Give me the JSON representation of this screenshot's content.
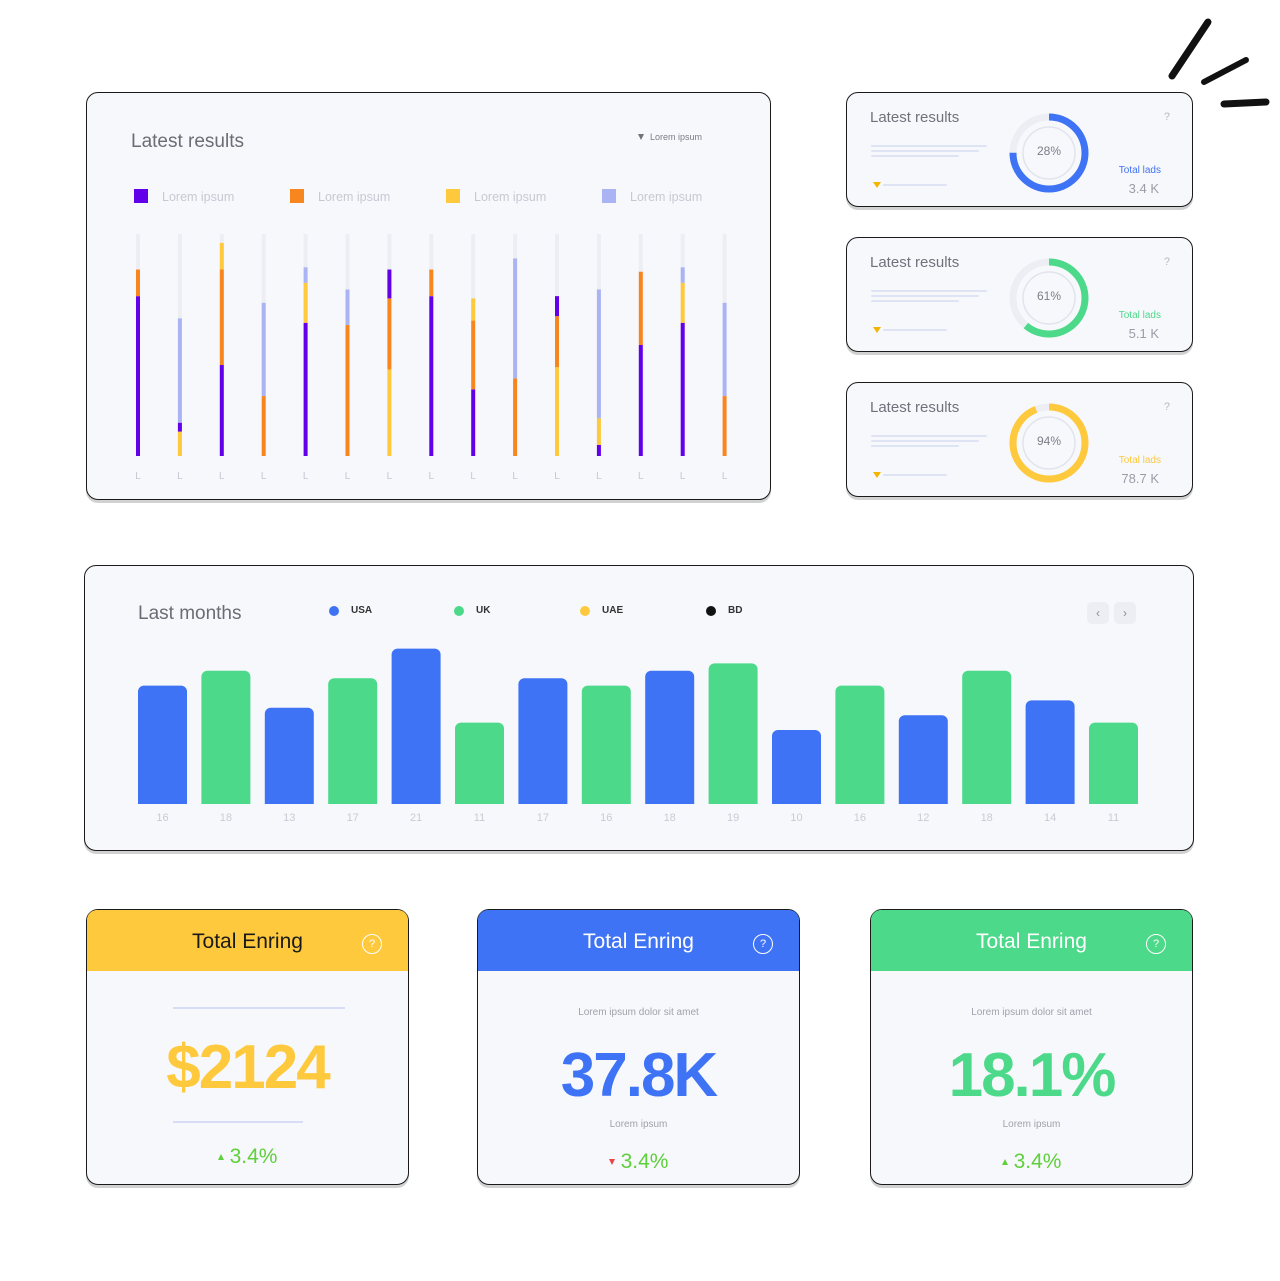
{
  "latest_results_card": {
    "title": "Latest results",
    "dropdown_label": "Lorem ipsum",
    "legend": [
      {
        "label": "Lorem ipsum",
        "color": "#6200ea"
      },
      {
        "label": "Lorem ipsum",
        "color": "#f7861e"
      },
      {
        "label": "Lorem ipsum",
        "color": "#fec93d"
      },
      {
        "label": "Lorem ipsum",
        "color": "#aab4f5"
      }
    ]
  },
  "chart_data": [
    {
      "type": "bar",
      "stacked": true,
      "title": "Latest results",
      "categories": [
        "L",
        "L",
        "L",
        "L",
        "L",
        "L",
        "L",
        "L",
        "L",
        "L",
        "L",
        "L",
        "L",
        "L",
        "L"
      ],
      "ylim": [
        0,
        100
      ],
      "series": [
        {
          "name": "",
          "color": "#6200ea",
          "values": [
            72,
            0,
            41,
            0,
            60,
            0,
            0,
            72,
            30,
            0,
            0,
            5,
            50,
            60,
            0
          ]
        },
        {
          "name": "",
          "color": "#fec93d",
          "values": [
            0,
            0,
            0,
            0,
            0,
            0,
            39,
            0,
            0,
            0,
            40,
            12,
            0,
            0,
            0
          ]
        },
        {
          "name": "",
          "color": "#f7861e",
          "values": [
            12,
            0,
            43,
            27,
            0,
            59,
            32,
            12,
            31,
            35,
            23,
            0,
            33,
            0,
            27
          ]
        },
        {
          "name": "",
          "color": "#fec93d",
          "values": [
            0,
            11,
            12,
            0,
            18,
            0,
            0,
            0,
            10,
            0,
            0,
            0,
            0,
            18,
            0
          ]
        },
        {
          "name": "",
          "color": "#6200ea",
          "values": [
            0,
            4,
            0,
            0,
            0,
            0,
            13,
            0,
            0,
            0,
            9,
            0,
            0,
            0,
            0
          ]
        },
        {
          "name": "",
          "color": "#aab4f5",
          "values": [
            0,
            47,
            0,
            42,
            7,
            16,
            0,
            0,
            0,
            54,
            0,
            58,
            0,
            7,
            42
          ]
        }
      ],
      "track_color": "#eceef3"
    },
    {
      "type": "bar",
      "title": "Last months",
      "categories": [
        "16",
        "18",
        "13",
        "17",
        "21",
        "11",
        "17",
        "16",
        "18",
        "19",
        "10",
        "16",
        "12",
        "18",
        "14",
        "11"
      ],
      "values": [
        16,
        18,
        13,
        17,
        21,
        11,
        17,
        16,
        18,
        19,
        10,
        16,
        12,
        18,
        14,
        11
      ],
      "series_by_bar": [
        "USA",
        "UK",
        "USA",
        "UK",
        "USA",
        "UK",
        "USA",
        "UK",
        "USA",
        "UK",
        "USA",
        "UK",
        "USA",
        "UK",
        "USA",
        "UK"
      ],
      "legend": [
        {
          "name": "USA",
          "color": "#3f73f5"
        },
        {
          "name": "UK",
          "color": "#4cd98a"
        },
        {
          "name": "UAE",
          "color": "#fec93d"
        },
        {
          "name": "BD",
          "color": "#111111"
        }
      ]
    }
  ],
  "last_months_card": {
    "title": "Last months",
    "prev_label": "‹",
    "next_label": "›"
  },
  "mini_cards": [
    {
      "title": "Latest results",
      "help": "?",
      "percent": 28,
      "percent_label": "28%",
      "total_label": "Total lads",
      "total_value": "3.4 K",
      "color": "#3f73f5"
    },
    {
      "title": "Latest results",
      "help": "?",
      "percent": 61,
      "percent_label": "61%",
      "total_label": "Total lads",
      "total_value": "5.1 K",
      "color": "#4cd98a"
    },
    {
      "title": "Latest results",
      "help": "?",
      "percent": 94,
      "percent_label": "94%",
      "total_label": "Total lads",
      "total_value": "78.7 K",
      "color": "#fec93d"
    }
  ],
  "stat_cards": [
    {
      "title": "Total Enring",
      "help": "?",
      "subtitle": "",
      "value": "$2124",
      "caption": "",
      "delta": "3.4%",
      "trend": "up",
      "color": "#fec93d",
      "title_color": "#1a1a1a"
    },
    {
      "title": "Total Enring",
      "help": "?",
      "subtitle": "Lorem ipsum dolor sit amet",
      "value": "37.8K",
      "caption": "Lorem ipsum",
      "delta": "3.4%",
      "trend": "down",
      "color": "#3f73f5",
      "title_color": "#ffffff"
    },
    {
      "title": "Total Enring",
      "help": "?",
      "subtitle": "Lorem ipsum dolor sit amet",
      "value": "18.1%",
      "caption": "Lorem ipsum",
      "delta": "3.4%",
      "trend": "up",
      "color": "#4cd98a",
      "title_color": "#ffffff"
    }
  ],
  "icons": {
    "dropdown": "triangle-down-icon",
    "help": "question-mark-icon",
    "prev": "chevron-left-icon",
    "next": "chevron-right-icon"
  }
}
